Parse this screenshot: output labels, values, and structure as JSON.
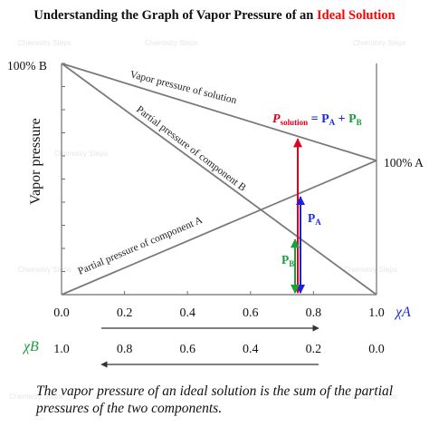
{
  "watermark": "Chemistry Steps",
  "colors": {
    "line": "#7a7a7a",
    "axis": "#6e6e6e",
    "ideal": "#ff0000",
    "red_arrow": "#e0001b",
    "blue_arrow": "#1f1fe0",
    "green_arrow": "#19a337",
    "green_text": "#1a9c3a",
    "blue_text": "#1a2fd6",
    "x_arrow": "#333333"
  },
  "chart_data": {
    "type": "line",
    "title": "Understanding the Graph of Vapor Pressure of an",
    "title_highlight": "Ideal Solution",
    "xlabel": "χA",
    "xlabel2": "χB",
    "ylabel": "Vapor pressure",
    "xlim": [
      0.0,
      1.0
    ],
    "ylim": [
      0,
      1
    ],
    "x_ticks": [
      "0.0",
      "0.2",
      "0.4",
      "0.6",
      "0.8",
      "1.0"
    ],
    "x_ticks_b": [
      "1.0",
      "0.8",
      "0.6",
      "0.4",
      "0.2",
      "0.0"
    ],
    "endpoint_labels": {
      "left": "100% B",
      "right": "100% A"
    },
    "series": [
      {
        "name": "Vapor pressure of solution",
        "x": [
          0,
          1
        ],
        "y": [
          1.0,
          0.58
        ]
      },
      {
        "name": "Partial pressure of component B",
        "x": [
          0,
          1
        ],
        "y": [
          1.0,
          0.0
        ]
      },
      {
        "name": "Partial pressure of component A",
        "x": [
          0,
          1
        ],
        "y": [
          0.0,
          0.58
        ]
      }
    ],
    "marker_x": 0.75,
    "arrows": [
      {
        "name": "P_B",
        "from": 0.0,
        "to": 0.25,
        "color": "green"
      },
      {
        "name": "P_A",
        "from": 0.0,
        "to": 0.435,
        "color": "blue"
      },
      {
        "name": "P_solution",
        "from": 0.0,
        "to": 0.685,
        "color": "red"
      }
    ],
    "annotations": {
      "eq_p": "P",
      "eq_sub_solution": "solution",
      "eq_equals": " = ",
      "eq_pa": "P",
      "eq_sub_a": "A",
      "eq_plus": " + ",
      "eq_pb": "P",
      "eq_sub_b": "B",
      "pa_label_p": "P",
      "pa_label_sub": "A",
      "pb_label_p": "P",
      "pb_label_sub": "B"
    }
  },
  "caption": "The vapor pressure of an ideal solution is the sum of the partial pressures of the two components."
}
